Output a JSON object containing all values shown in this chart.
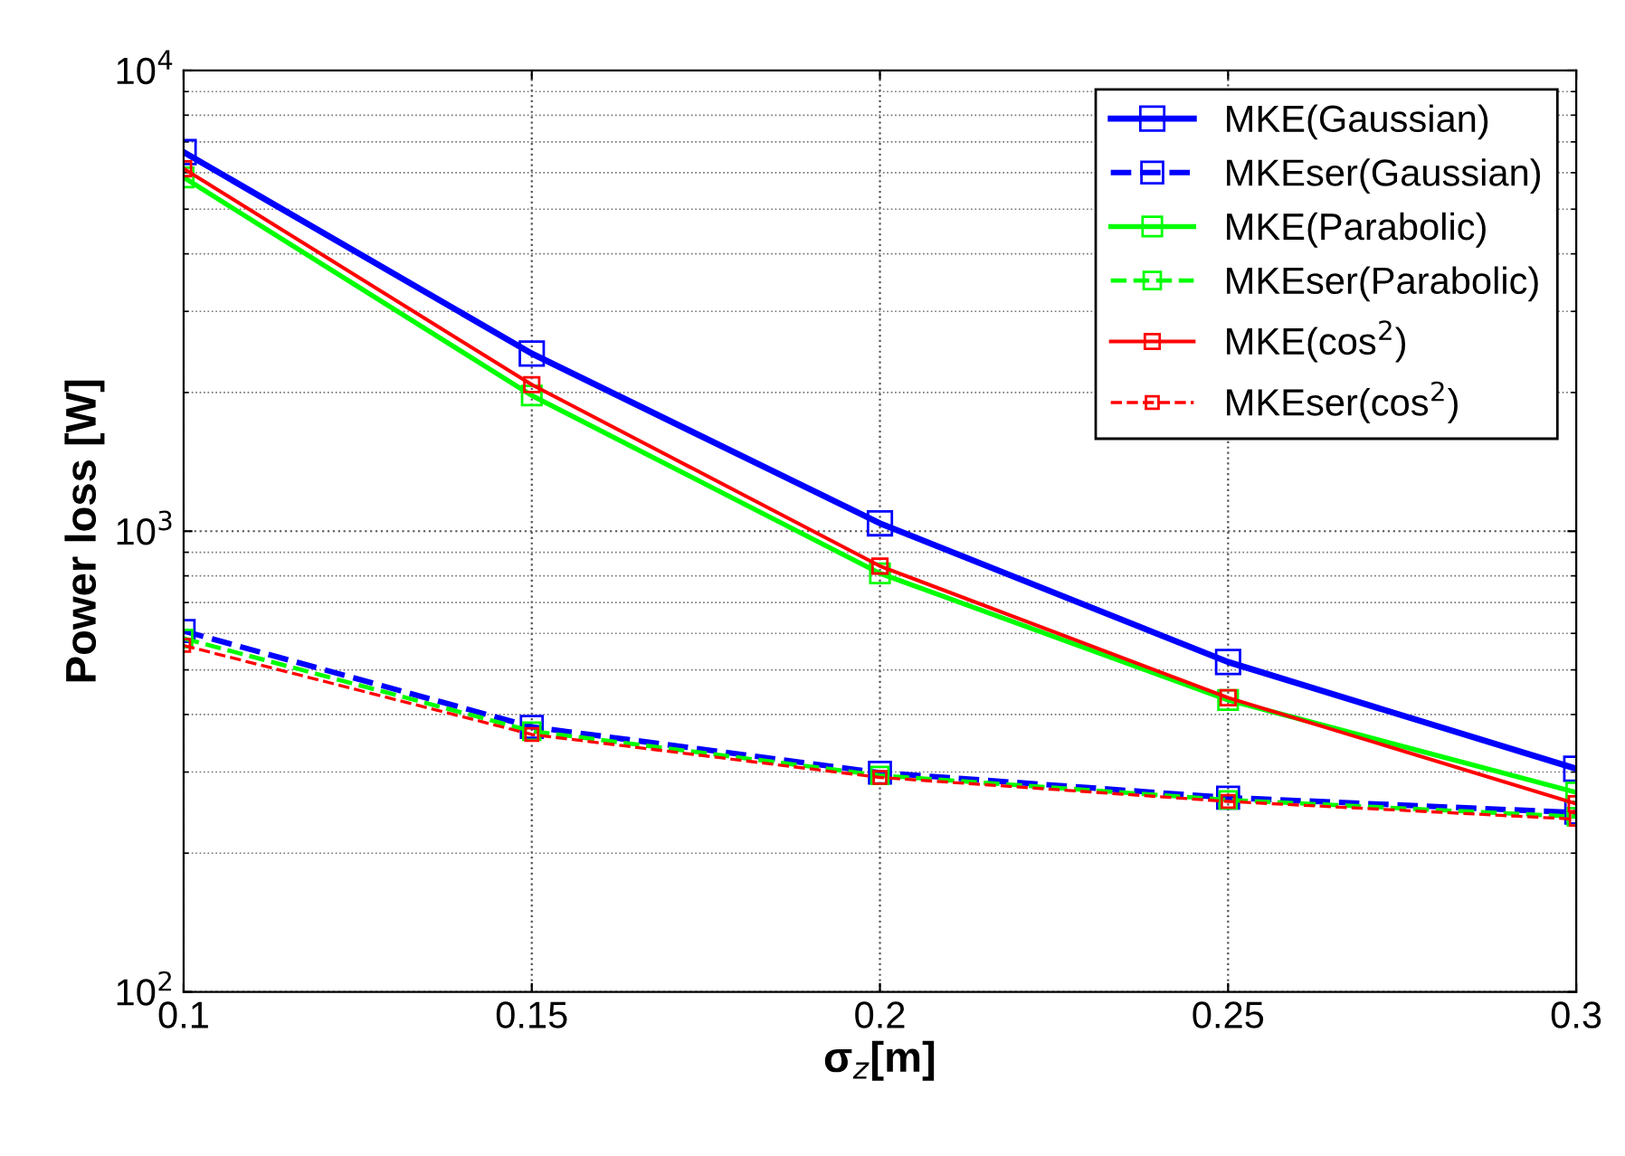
{
  "chart_data": {
    "type": "line",
    "xlabel": "σ$_{z}$[m]",
    "ylabel": "Power loss [W]",
    "x": [
      0.1,
      0.15,
      0.2,
      0.25,
      0.3
    ],
    "series": [
      {
        "name": "MKE(Gaussian)",
        "color": "#0000ff",
        "line_style": "solid",
        "values": [
          6650,
          2430,
          1040,
          520,
          305
        ]
      },
      {
        "name": "MKEser(Gaussian)",
        "color": "#0000ff",
        "line_style": "dashed",
        "values": [
          607,
          376,
          299,
          264,
          245
        ]
      },
      {
        "name": "MKE(Parabolic)",
        "color": "#00ff00",
        "line_style": "solid",
        "values": [
          5860,
          1970,
          810,
          430,
          271
        ]
      },
      {
        "name": "MKEser(Parabolic)",
        "color": "#00ff00",
        "line_style": "dashed",
        "values": [
          585,
          368,
          295,
          261,
          240
        ]
      },
      {
        "name": "MKE(cos$^{2}$)",
        "color": "#ff0000",
        "line_style": "solid",
        "values": [
          6120,
          2080,
          840,
          435,
          256
        ]
      },
      {
        "name": "MKEser(cos$^{2}$)",
        "color": "#ff0000",
        "line_style": "dashed",
        "values": [
          565,
          362,
          292,
          259,
          237
        ]
      }
    ],
    "log": "y",
    "xlim": [
      0.1,
      0.3
    ],
    "xticks": [
      0.1,
      0.15,
      0.2,
      0.25,
      0.3
    ],
    "ylim": [
      100,
      10000
    ],
    "yticks": [
      {
        "value": 100,
        "label": "10$^{2}$"
      },
      {
        "value": 1000,
        "label": "10$^{3}$"
      },
      {
        "value": 10000,
        "label": "10$^{4}$"
      }
    ],
    "grid": true,
    "legend": "top right",
    "marker": "square"
  }
}
